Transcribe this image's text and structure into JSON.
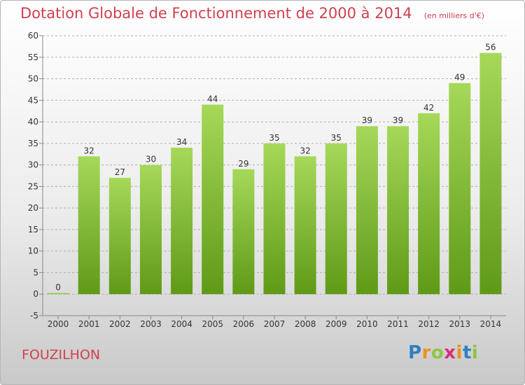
{
  "header": {
    "title": "Dotation Globale de Fonctionnement de 2000 à 2014",
    "subtitle": "(en milliers d'€)"
  },
  "footer": {
    "commune": "FOUZILHON",
    "logo_letters": [
      "P",
      "r",
      "o",
      "x",
      "i",
      "t",
      "i"
    ],
    "logo_colors": [
      "#2f7fc1",
      "#e8931f",
      "#8dc63f",
      "#d62f7a",
      "#e8931f",
      "#2f7fc1",
      "#8dc63f"
    ]
  },
  "chart_data": {
    "type": "bar",
    "categories": [
      "2000",
      "2001",
      "2002",
      "2003",
      "2004",
      "2005",
      "2006",
      "2007",
      "2008",
      "2009",
      "2010",
      "2011",
      "2012",
      "2013",
      "2014"
    ],
    "values": [
      0,
      32,
      27,
      30,
      34,
      44,
      29,
      35,
      32,
      35,
      39,
      39,
      42,
      49,
      56
    ],
    "title": "Dotation Globale de Fonctionnement de 2000 à 2014",
    "subtitle": "(en milliers d'€)",
    "ylim": [
      -5,
      60
    ],
    "yticks": [
      -5,
      0,
      5,
      10,
      15,
      20,
      25,
      30,
      35,
      40,
      45,
      50,
      55,
      60
    ],
    "grid": "horizontal dashed",
    "bar_color_light": "#a6d85a",
    "bar_color_dark": "#5f9a17"
  }
}
